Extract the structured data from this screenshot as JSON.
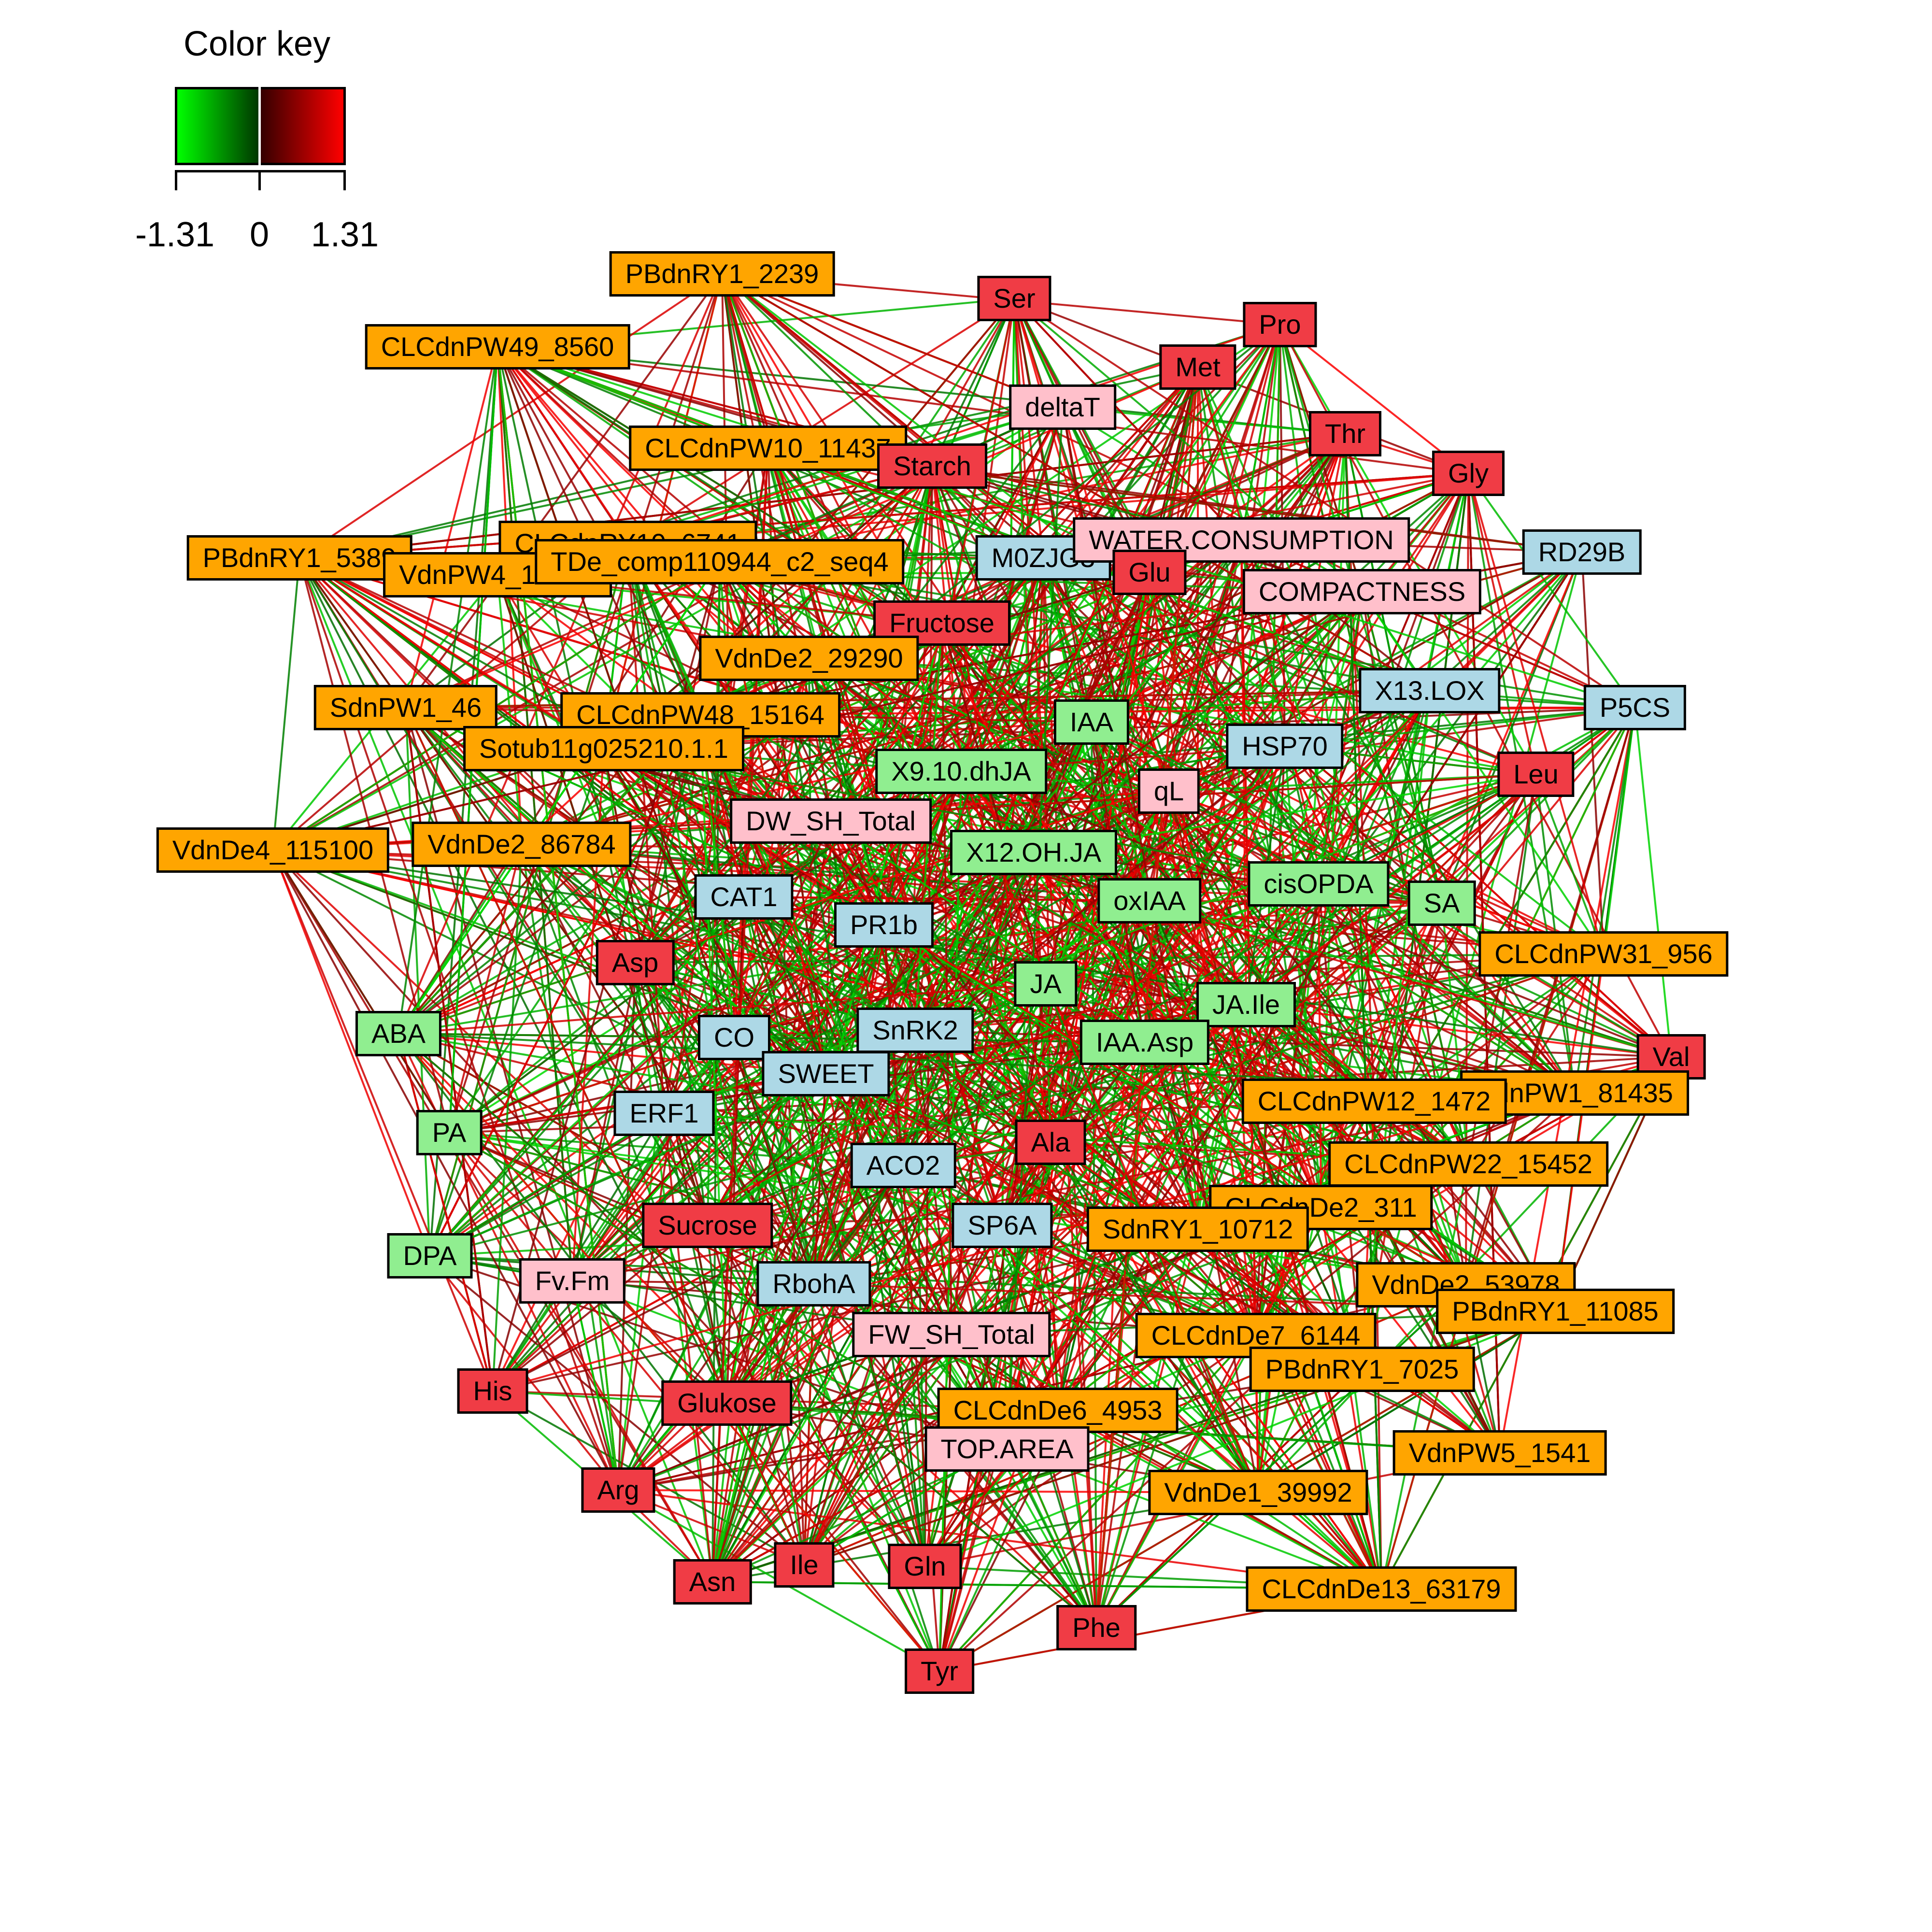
{
  "color_key": {
    "title": "Color key",
    "min_label": "-1.31",
    "mid_label": "0",
    "max_label": "1.31",
    "min_value": -1.31,
    "max_value": 1.31,
    "low_color": "#00ff00",
    "mid_color": "#000000",
    "high_color": "#ff0000"
  },
  "node_colors": {
    "orange": "#ffa500",
    "red": "#f03c45",
    "pink": "#ffc0cb",
    "blue": "#add8e6",
    "green": "#90ee90"
  },
  "nodes": [
    {
      "label": "PBdnRY1_2239",
      "group": "orange"
    },
    {
      "label": "Ser",
      "group": "red"
    },
    {
      "label": "Pro",
      "group": "red"
    },
    {
      "label": "CLCdnPW49_8560",
      "group": "orange"
    },
    {
      "label": "Met",
      "group": "red"
    },
    {
      "label": "deltaT",
      "group": "pink"
    },
    {
      "label": "Thr",
      "group": "red"
    },
    {
      "label": "CLCdnPW10_11437",
      "group": "orange"
    },
    {
      "label": "Starch",
      "group": "red"
    },
    {
      "label": "Gly",
      "group": "red"
    },
    {
      "label": "PBdnRY1_5389",
      "group": "orange"
    },
    {
      "label": "CLCdnRY10_6741",
      "group": "orange"
    },
    {
      "label": "VdnPW4_18801",
      "group": "orange"
    },
    {
      "label": "TDe_comp110944_c2_seq4",
      "group": "orange"
    },
    {
      "label": "M0ZJG3",
      "group": "blue"
    },
    {
      "label": "WATER.CONSUMPTION",
      "group": "pink"
    },
    {
      "label": "Glu",
      "group": "red"
    },
    {
      "label": "RD29B",
      "group": "blue"
    },
    {
      "label": "COMPACTNESS",
      "group": "pink"
    },
    {
      "label": "Fructose",
      "group": "red"
    },
    {
      "label": "VdnDe2_29290",
      "group": "orange"
    },
    {
      "label": "X13.LOX",
      "group": "blue"
    },
    {
      "label": "SdnPW1_46",
      "group": "orange"
    },
    {
      "label": "CLCdnPW48_15164",
      "group": "orange"
    },
    {
      "label": "IAA",
      "group": "green"
    },
    {
      "label": "P5CS",
      "group": "blue"
    },
    {
      "label": "Sotub11g025210.1.1",
      "group": "orange"
    },
    {
      "label": "HSP70",
      "group": "blue"
    },
    {
      "label": "X9.10.dhJA",
      "group": "green"
    },
    {
      "label": "Leu",
      "group": "red"
    },
    {
      "label": "qL",
      "group": "pink"
    },
    {
      "label": "DW_SH_Total",
      "group": "pink"
    },
    {
      "label": "VdnDe4_115100",
      "group": "orange"
    },
    {
      "label": "VdnDe2_86784",
      "group": "orange"
    },
    {
      "label": "X12.OH.JA",
      "group": "green"
    },
    {
      "label": "cisOPDA",
      "group": "green"
    },
    {
      "label": "CAT1",
      "group": "blue"
    },
    {
      "label": "oxIAA",
      "group": "green"
    },
    {
      "label": "SA",
      "group": "green"
    },
    {
      "label": "PR1b",
      "group": "blue"
    },
    {
      "label": "CLCdnPW31_956",
      "group": "orange"
    },
    {
      "label": "Asp",
      "group": "red"
    },
    {
      "label": "JA",
      "group": "green"
    },
    {
      "label": "JA.Ile",
      "group": "green"
    },
    {
      "label": "ABA",
      "group": "green"
    },
    {
      "label": "SnRK2",
      "group": "blue"
    },
    {
      "label": "CO",
      "group": "blue"
    },
    {
      "label": "IAA.Asp",
      "group": "green"
    },
    {
      "label": "Val",
      "group": "red"
    },
    {
      "label": "SWEET",
      "group": "blue"
    },
    {
      "label": "VdnPW1_81435",
      "group": "orange"
    },
    {
      "label": "CLCdnPW12_1472",
      "group": "orange"
    },
    {
      "label": "ERF1",
      "group": "blue"
    },
    {
      "label": "PA",
      "group": "green"
    },
    {
      "label": "Ala",
      "group": "red"
    },
    {
      "label": "CLCdnPW22_15452",
      "group": "orange"
    },
    {
      "label": "ACO2",
      "group": "blue"
    },
    {
      "label": "CLCdnDe2_311",
      "group": "orange"
    },
    {
      "label": "Sucrose",
      "group": "red"
    },
    {
      "label": "SdnRY1_10712",
      "group": "orange"
    },
    {
      "label": "SP6A",
      "group": "blue"
    },
    {
      "label": "DPA",
      "group": "green"
    },
    {
      "label": "VdnDe2_53978",
      "group": "orange"
    },
    {
      "label": "Fv.Fm",
      "group": "pink"
    },
    {
      "label": "RbohA",
      "group": "blue"
    },
    {
      "label": "PBdnRY1_11085",
      "group": "orange"
    },
    {
      "label": "FW_SH_Total",
      "group": "pink"
    },
    {
      "label": "CLCdnDe7_6144",
      "group": "orange"
    },
    {
      "label": "PBdnRY1_7025",
      "group": "orange"
    },
    {
      "label": "His",
      "group": "red"
    },
    {
      "label": "Glukose",
      "group": "red"
    },
    {
      "label": "CLCdnDe6_4953",
      "group": "orange"
    },
    {
      "label": "TOP.AREA",
      "group": "pink"
    },
    {
      "label": "VdnPW5_1541",
      "group": "orange"
    },
    {
      "label": "Arg",
      "group": "red"
    },
    {
      "label": "VdnDe1_39992",
      "group": "orange"
    },
    {
      "label": "Ile",
      "group": "red"
    },
    {
      "label": "Gln",
      "group": "red"
    },
    {
      "label": "Asn",
      "group": "red"
    },
    {
      "label": "CLCdnDe13_63179",
      "group": "orange"
    },
    {
      "label": "Phe",
      "group": "red"
    },
    {
      "label": "Tyr",
      "group": "red"
    }
  ]
}
